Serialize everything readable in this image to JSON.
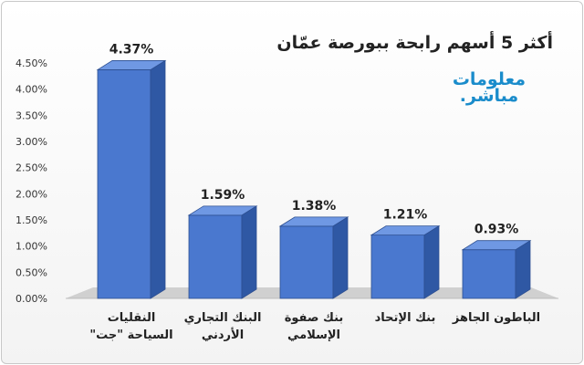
{
  "chart_data": {
    "type": "bar",
    "title": "أكثر 5 أسهم رابحة ببورصة عمّان",
    "categories": [
      [
        "النقليات",
        "السياحة \"جت\""
      ],
      [
        "البنك التجاري",
        "الأردني"
      ],
      [
        "بنك صفوة",
        "الإسلامي"
      ],
      [
        "بنك الإتحاد"
      ],
      [
        "الباطون الجاهز"
      ]
    ],
    "values": [
      4.37,
      1.59,
      1.38,
      1.21,
      0.93
    ],
    "data_labels": [
      "4.37%",
      "1.59%",
      "1.38%",
      "1.21%",
      "0.93%"
    ],
    "ylim": [
      0,
      4.5
    ],
    "yticks": [
      "0.00%",
      "0.50%",
      "1.00%",
      "1.50%",
      "2.00%",
      "2.50%",
      "3.00%",
      "3.50%",
      "4.00%",
      "4.50%"
    ],
    "xlabel": "",
    "ylabel": "",
    "grid": false,
    "colors": {
      "bar_front": "#4a78cf",
      "bar_side": "#2f58a4",
      "bar_top": "#6f98e3",
      "floor": "#d0d0d0"
    }
  },
  "watermark": {
    "line1": "معلومات",
    "line2": "مباشر."
  }
}
